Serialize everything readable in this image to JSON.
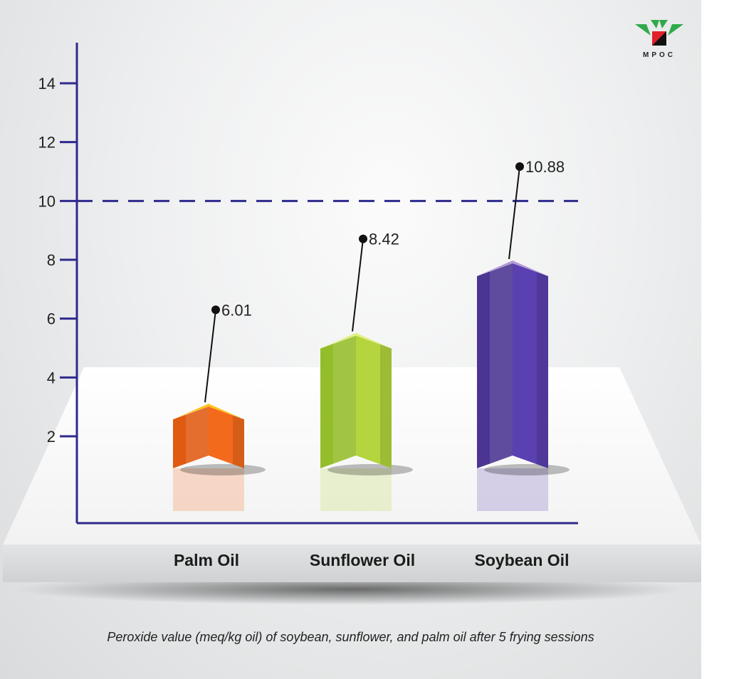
{
  "logo": {
    "text": "MPOC"
  },
  "caption": "Peroxide value (meq/kg oil) of soybean, sunflower, and palm oil after 5 frying sessions",
  "colors": {
    "axis": "#2e2a8c",
    "palm": "#f08a1a",
    "sunflower": "#a9cc3a",
    "soybean": "#6a4bb0",
    "logo_green": "#2eaa4a",
    "logo_red": "#e0202a"
  },
  "chart_data": {
    "type": "bar",
    "categories": [
      "Palm Oil",
      "Sunflower Oil",
      "Soybean Oil"
    ],
    "values": [
      6.01,
      8.42,
      10.88
    ],
    "value_labels": [
      "6.01",
      "8.42",
      "10.88"
    ],
    "ylim": [
      0,
      15
    ],
    "yticks": [
      2,
      4,
      6,
      8,
      10,
      12,
      14
    ],
    "reference_line": 10,
    "title": "",
    "xlabel": "",
    "ylabel": "",
    "grid": false
  }
}
